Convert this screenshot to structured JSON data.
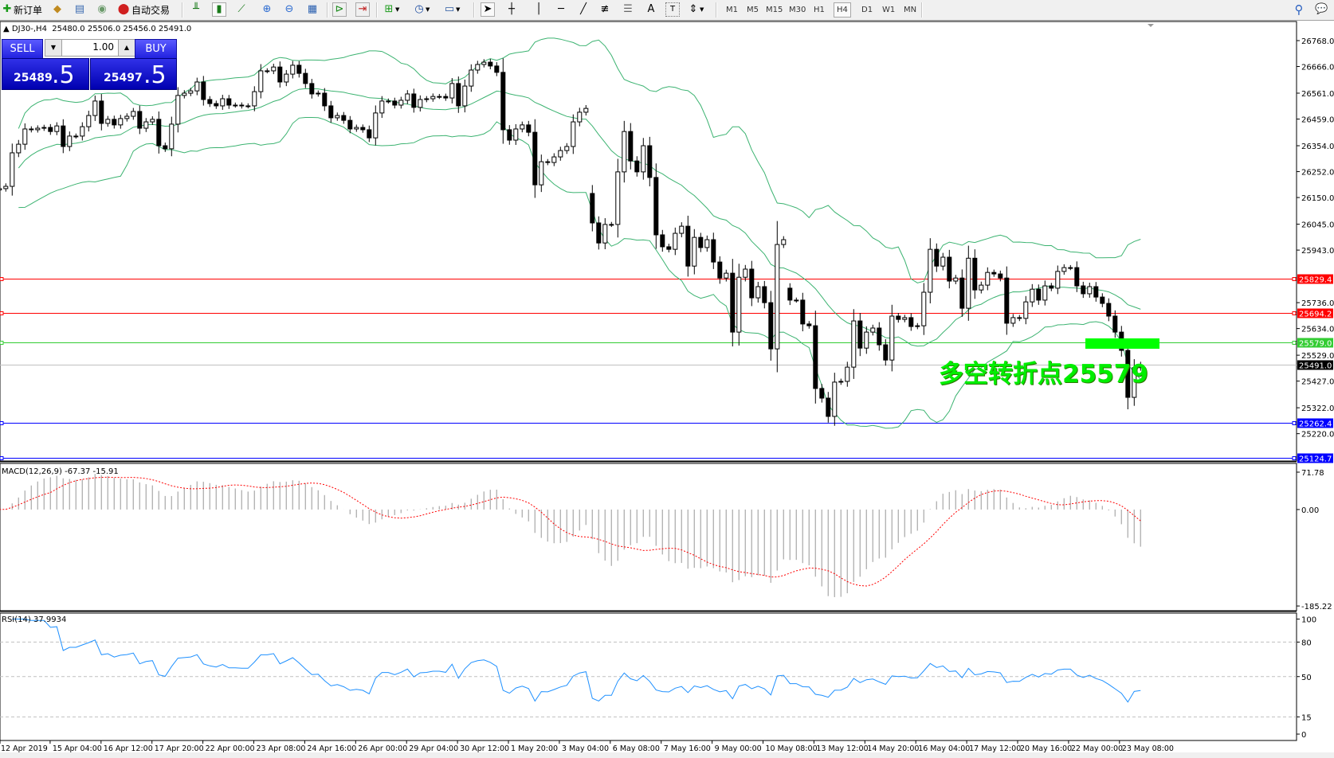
{
  "toolbar": {
    "new_order_label": "新订单",
    "auto_trading_label": "自动交易",
    "timeframes": [
      "M1",
      "M5",
      "M15",
      "M30",
      "H1",
      "H4",
      "D1",
      "W1",
      "MN"
    ],
    "active_timeframe": "H4",
    "text_tool_label": "A"
  },
  "chart_header": {
    "symbol": "DJ30-,H4",
    "ohlc": "25480.0 25506.0 25456.0 25491.0"
  },
  "trade_panel": {
    "sell_label": "SELL",
    "buy_label": "BUY",
    "volume": "1.00",
    "sell_price_main": "25489",
    "sell_price_frac": ".5",
    "buy_price_main": "25497",
    "buy_price_frac": ".5"
  },
  "annotation": {
    "text": "多空转折点25579",
    "color": "#00ee00",
    "marker_color": "#00ff00"
  },
  "price_axis": {
    "ticks": [
      "26768.0",
      "26666.0",
      "26561.0",
      "26459.0",
      "26354.0",
      "26252.0",
      "26150.0",
      "26045.0",
      "25943.0",
      "25736.0",
      "25634.0",
      "25529.0",
      "25427.0",
      "25322.0",
      "25220.0"
    ],
    "levels": [
      {
        "value": "25829.4",
        "color": "#ff0000"
      },
      {
        "value": "25694.2",
        "color": "#ff0000"
      },
      {
        "value": "25579.0",
        "color": "#33cc33"
      },
      {
        "value": "25491.0",
        "color": "#000000",
        "line_color": "#c0c0c0"
      },
      {
        "value": "25262.4",
        "color": "#0000ff"
      },
      {
        "value": "25124.7",
        "color": "#0000ff"
      }
    ]
  },
  "macd": {
    "label": "MACD(12,26,9) -67.37 -15.91",
    "axis": [
      "71.78",
      "0.00",
      "-185.22"
    ],
    "histogram_color": "#b4b4b4",
    "signal_color": "#ff0000"
  },
  "rsi": {
    "label": "RSI(14) 37.9934",
    "axis": [
      "100",
      "80",
      "50",
      "15",
      "0"
    ],
    "line_color": "#1e90ff"
  },
  "time_axis": {
    "labels": [
      "12 Apr 2019",
      "15 Apr 04:00",
      "16 Apr 12:00",
      "17 Apr 20:00",
      "22 Apr 00:00",
      "23 Apr 08:00",
      "24 Apr 16:00",
      "26 Apr 00:00",
      "29 Apr 04:00",
      "30 Apr 12:00",
      "1 May 20:00",
      "3 May 04:00",
      "6 May 08:00",
      "7 May 16:00",
      "9 May 00:00",
      "10 May 08:00",
      "13 May 12:00",
      "14 May 20:00",
      "16 May 04:00",
      "17 May 12:00",
      "20 May 16:00",
      "22 May 00:00",
      "23 May 08:00"
    ]
  },
  "chart_data": {
    "type": "candlestick",
    "symbol": "DJ30-",
    "timeframe": "H4",
    "ylim": [
      25118,
      26800
    ],
    "bollinger_color": "#3cb371",
    "gap_opens": {
      "93": 26166,
      "124": 25793
    },
    "first_open": 26180,
    "close": [
      26185,
      26194,
      26326,
      26360,
      26420,
      26417,
      26423,
      26426,
      26410,
      26432,
      26351,
      26392,
      26392,
      26429,
      26473,
      26530,
      26442,
      26458,
      26436,
      26461,
      26470,
      26489,
      26423,
      26448,
      26458,
      26354,
      26342,
      26439,
      26552,
      26561,
      26570,
      26605,
      26536,
      26520,
      26511,
      26539,
      26514,
      26514,
      26511,
      26511,
      26567,
      26649,
      26649,
      26664,
      26605,
      26636,
      26671,
      26639,
      26599,
      26558,
      26561,
      26511,
      26464,
      26473,
      26454,
      26420,
      26426,
      26417,
      26385,
      26483,
      26530,
      26530,
      26514,
      26533,
      26558,
      26505,
      26536,
      26539,
      26548,
      26548,
      26542,
      26599,
      26511,
      26589,
      26652,
      26674,
      26683,
      26668,
      26643,
      26417,
      26376,
      26420,
      26436,
      26407,
      26200,
      26291,
      26288,
      26310,
      26335,
      26351,
      26448,
      26486,
      26501,
      26050,
      25971,
      26044,
      26044,
      26251,
      26410,
      26294,
      26251,
      26354,
      26229,
      26003,
      25956,
      25946,
      26009,
      26037,
      25880,
      25993,
      25953,
      25984,
      25896,
      25833,
      25852,
      25620,
      25836,
      25868,
      25755,
      25799,
      25736,
      25554,
      25965,
      25984,
      25746,
      25746,
      25652,
      25645,
      25398,
      25360,
      25288,
      25423,
      25426,
      25482,
      25664,
      25557,
      25620,
      25636,
      25570,
      25510,
      25683,
      25670,
      25677,
      25642,
      25645,
      25777,
      25946,
      25880,
      25915,
      25821,
      25833,
      25714,
      25911,
      25786,
      25805,
      25855,
      25849,
      25833,
      25655,
      25677,
      25674,
      25739,
      25789,
      25746,
      25802,
      25793,
      25859,
      25874,
      25874,
      25802,
      25771,
      25799,
      25758,
      25733,
      25683,
      25620,
      25548,
      25363,
      25480,
      25491
    ]
  }
}
